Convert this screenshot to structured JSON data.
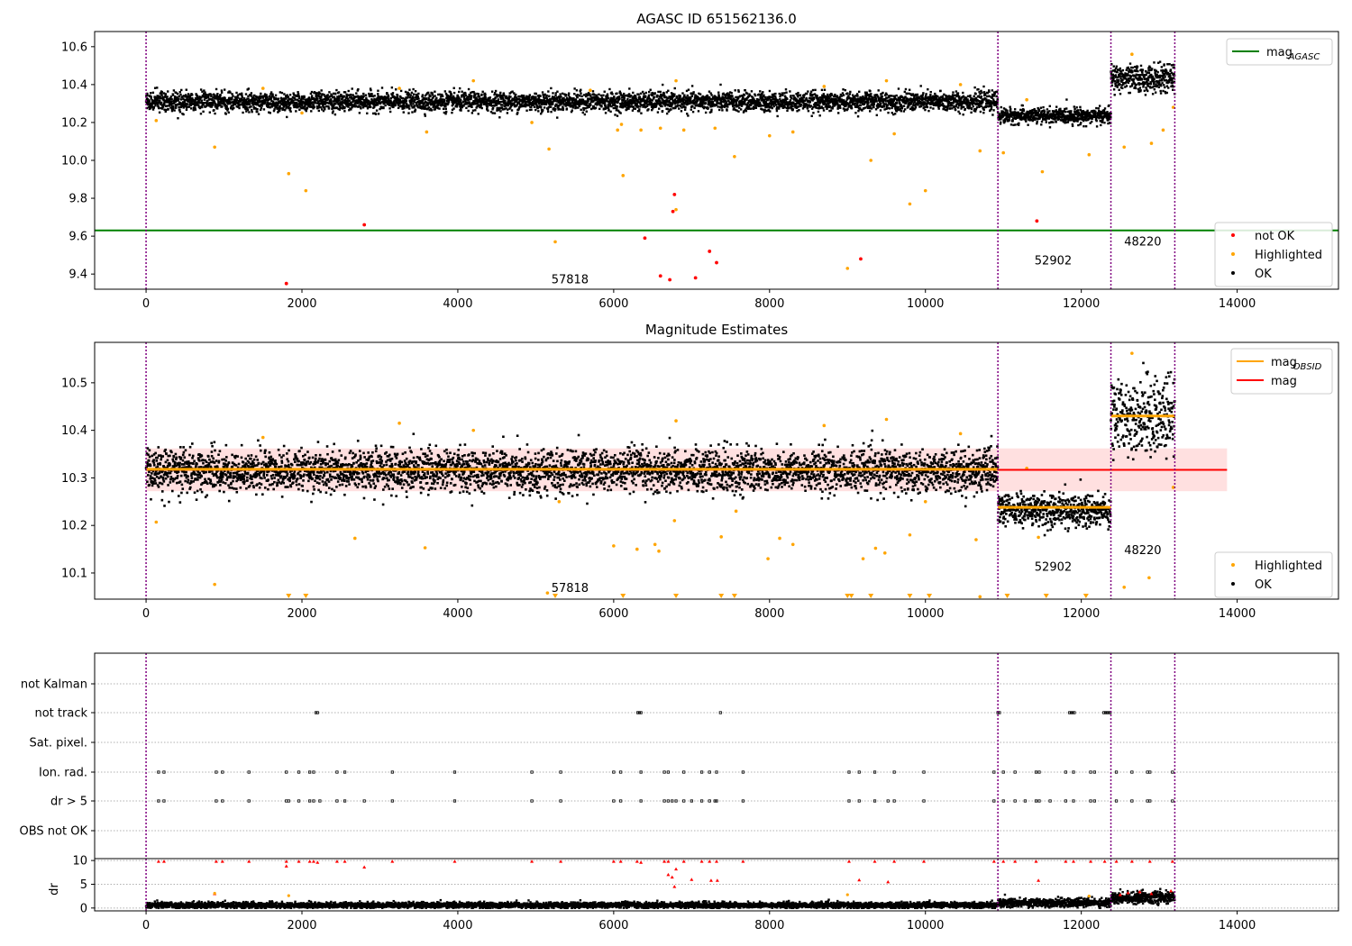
{
  "chart_data": [
    {
      "type": "scatter",
      "title": "AGASC ID 651562136.0",
      "xlabel": "",
      "ylabel": "",
      "xlim": [
        -660,
        15300
      ],
      "ylim": [
        9.32,
        10.68
      ],
      "xticks": [
        0,
        2000,
        4000,
        6000,
        8000,
        10000,
        12000,
        14000
      ],
      "yticks": [
        9.4,
        9.6,
        9.8,
        10.0,
        10.2,
        10.4,
        10.6
      ],
      "ytick_decimals": 1,
      "vlines": [
        0,
        10930,
        12380,
        13200
      ],
      "hline": {
        "name": "mag$_{AGASC}$",
        "y": 9.63,
        "color": "#008000"
      },
      "legends": [
        {
          "position": "top-right",
          "entries": [
            {
              "label": "mag",
              "sub": "AGASC",
              "marker": "line",
              "color": "#008000"
            }
          ]
        },
        {
          "position": "bottom-right",
          "entries": [
            {
              "label": "not OK",
              "marker": "dot",
              "color": "#ff0000"
            },
            {
              "label": "Highlighted",
              "marker": "dot",
              "color": "#ffa500"
            },
            {
              "label": "OK",
              "marker": "dot",
              "color": "#000000"
            }
          ]
        }
      ],
      "annotations": [
        {
          "text": "57818",
          "x": 5200,
          "y": 9.35
        },
        {
          "text": "52902",
          "x": 11400,
          "y": 9.45
        },
        {
          "text": "48220",
          "x": 12550,
          "y": 9.55
        }
      ],
      "segments": [
        {
          "x_start": 0,
          "x_end": 10930,
          "mean": 10.31,
          "spread": 0.025
        },
        {
          "x_start": 10930,
          "x_end": 12380,
          "mean": 10.235,
          "spread": 0.02
        },
        {
          "x_start": 12380,
          "x_end": 13200,
          "mean": 10.43,
          "spread": 0.035
        }
      ],
      "highlighted_points": [
        {
          "x": 880,
          "y": 10.07
        },
        {
          "x": 1830,
          "y": 9.93
        },
        {
          "x": 2050,
          "y": 9.84
        },
        {
          "x": 5250,
          "y": 9.57
        },
        {
          "x": 5170,
          "y": 10.06
        },
        {
          "x": 6100,
          "y": 10.19
        },
        {
          "x": 6120,
          "y": 9.92
        },
        {
          "x": 6600,
          "y": 10.17
        },
        {
          "x": 6800,
          "y": 9.74
        },
        {
          "x": 7550,
          "y": 10.02
        },
        {
          "x": 8000,
          "y": 10.13
        },
        {
          "x": 9000,
          "y": 9.43
        },
        {
          "x": 9800,
          "y": 9.77
        },
        {
          "x": 10000,
          "y": 9.84
        },
        {
          "x": 10700,
          "y": 10.05
        },
        {
          "x": 11000,
          "y": 10.04
        },
        {
          "x": 11500,
          "y": 9.94
        },
        {
          "x": 12100,
          "y": 10.03
        },
        {
          "x": 12550,
          "y": 10.07
        },
        {
          "x": 12900,
          "y": 10.09
        },
        {
          "x": 13050,
          "y": 10.16
        },
        {
          "x": 130,
          "y": 10.21
        },
        {
          "x": 3600,
          "y": 10.15
        },
        {
          "x": 9300,
          "y": 10.0
        },
        {
          "x": 9600,
          "y": 10.14
        },
        {
          "x": 8300,
          "y": 10.15
        },
        {
          "x": 6900,
          "y": 10.16
        },
        {
          "x": 6050,
          "y": 10.16
        },
        {
          "x": 6350,
          "y": 10.16
        },
        {
          "x": 7300,
          "y": 10.17
        },
        {
          "x": 4950,
          "y": 10.2
        },
        {
          "x": 2000,
          "y": 10.25
        },
        {
          "x": 1500,
          "y": 10.38
        },
        {
          "x": 3250,
          "y": 10.38
        },
        {
          "x": 4200,
          "y": 10.42
        },
        {
          "x": 5700,
          "y": 10.37
        },
        {
          "x": 6800,
          "y": 10.42
        },
        {
          "x": 8700,
          "y": 10.39
        },
        {
          "x": 9500,
          "y": 10.42
        },
        {
          "x": 10450,
          "y": 10.4
        },
        {
          "x": 12650,
          "y": 10.56
        },
        {
          "x": 11300,
          "y": 10.32
        },
        {
          "x": 13180,
          "y": 10.28
        }
      ],
      "notok_points": [
        {
          "x": 1800,
          "y": 9.35
        },
        {
          "x": 2800,
          "y": 9.66
        },
        {
          "x": 6400,
          "y": 9.59
        },
        {
          "x": 6600,
          "y": 9.39
        },
        {
          "x": 6720,
          "y": 9.37
        },
        {
          "x": 6780,
          "y": 9.82
        },
        {
          "x": 6760,
          "y": 9.73
        },
        {
          "x": 7050,
          "y": 9.38
        },
        {
          "x": 7230,
          "y": 9.52
        },
        {
          "x": 7320,
          "y": 9.46
        },
        {
          "x": 9170,
          "y": 9.48
        },
        {
          "x": 11430,
          "y": 9.68
        }
      ]
    },
    {
      "type": "scatter",
      "title": "Magnitude Estimates",
      "xlabel": "",
      "ylabel": "",
      "xlim": [
        -660,
        15300
      ],
      "ylim": [
        10.045,
        10.585
      ],
      "xticks": [
        0,
        2000,
        4000,
        6000,
        8000,
        10000,
        12000,
        14000
      ],
      "yticks": [
        10.1,
        10.2,
        10.3,
        10.4,
        10.5
      ],
      "ytick_decimals": 1,
      "vlines": [
        0,
        10930,
        12380,
        13200
      ],
      "mag": {
        "y": 10.317,
        "band": [
          10.272,
          10.362
        ],
        "x_end": 13870,
        "color": "#ff0000"
      },
      "mag_obsid": [
        {
          "x_start": 0,
          "x_end": 10930,
          "y": 10.318
        },
        {
          "x_start": 10930,
          "x_end": 12380,
          "y": 10.238
        },
        {
          "x_start": 12380,
          "x_end": 13200,
          "y": 10.43
        }
      ],
      "legends": [
        {
          "position": "top-right",
          "entries": [
            {
              "label": "mag",
              "sub": "OBSID",
              "marker": "line",
              "color": "#ffa500"
            },
            {
              "label": "mag",
              "marker": "line",
              "color": "#ff0000"
            }
          ]
        },
        {
          "position": "bottom-right",
          "entries": [
            {
              "label": "Highlighted",
              "marker": "dot",
              "color": "#ffa500"
            },
            {
              "label": "OK",
              "marker": "dot",
              "color": "#000000"
            }
          ]
        }
      ],
      "annotations": [
        {
          "text": "57818",
          "x": 5200,
          "y": 10.06
        },
        {
          "text": "52902",
          "x": 11400,
          "y": 10.105
        },
        {
          "text": "48220",
          "x": 12550,
          "y": 10.14
        }
      ],
      "segments": [
        {
          "x_start": 0,
          "x_end": 10930,
          "mean": 10.315,
          "spread": 0.022
        },
        {
          "x_start": 10930,
          "x_end": 12380,
          "mean": 10.232,
          "spread": 0.017
        },
        {
          "x_start": 12380,
          "x_end": 13200,
          "mean": 10.43,
          "spread": 0.04
        }
      ],
      "highlighted_points": [
        {
          "x": 880,
          "y": 10.076
        },
        {
          "x": 2680,
          "y": 10.173
        },
        {
          "x": 3580,
          "y": 10.153
        },
        {
          "x": 6000,
          "y": 10.157
        },
        {
          "x": 6300,
          "y": 10.15
        },
        {
          "x": 6530,
          "y": 10.16
        },
        {
          "x": 6580,
          "y": 10.146
        },
        {
          "x": 6780,
          "y": 10.21
        },
        {
          "x": 7380,
          "y": 10.176
        },
        {
          "x": 7570,
          "y": 10.23
        },
        {
          "x": 7980,
          "y": 10.13
        },
        {
          "x": 8130,
          "y": 10.173
        },
        {
          "x": 8300,
          "y": 10.16
        },
        {
          "x": 9200,
          "y": 10.13
        },
        {
          "x": 9360,
          "y": 10.152
        },
        {
          "x": 9480,
          "y": 10.142
        },
        {
          "x": 10650,
          "y": 10.17
        },
        {
          "x": 11450,
          "y": 10.175
        },
        {
          "x": 12550,
          "y": 10.07
        },
        {
          "x": 12870,
          "y": 10.09
        },
        {
          "x": 130,
          "y": 10.207
        },
        {
          "x": 5150,
          "y": 10.058
        },
        {
          "x": 10700,
          "y": 10.05
        },
        {
          "x": 12650,
          "y": 10.562
        },
        {
          "x": 13180,
          "y": 10.28
        },
        {
          "x": 3250,
          "y": 10.415
        },
        {
          "x": 6800,
          "y": 10.42
        },
        {
          "x": 9500,
          "y": 10.423
        },
        {
          "x": 1500,
          "y": 10.385
        },
        {
          "x": 4200,
          "y": 10.4
        },
        {
          "x": 8700,
          "y": 10.41
        },
        {
          "x": 10450,
          "y": 10.393
        },
        {
          "x": 11300,
          "y": 10.32
        },
        {
          "x": 9800,
          "y": 10.18
        },
        {
          "x": 10000,
          "y": 10.25
        },
        {
          "x": 5300,
          "y": 10.25
        }
      ],
      "offscale_x": [
        1830,
        2050,
        5250,
        6120,
        6800,
        7380,
        7550,
        9000,
        9050,
        9300,
        9800,
        10050,
        11050,
        11550,
        12060
      ]
    },
    {
      "type": "scatter",
      "title": "",
      "xlabel": "",
      "ylabel": "",
      "xlim": [
        -660,
        15300
      ],
      "categories": [
        "not Kalman",
        "not track",
        "Sat. pixel.",
        "Ion. rad.",
        "dr > 5",
        "OBS not OK"
      ],
      "vlines": [
        0,
        10930,
        12380,
        13200
      ],
      "flags": {
        "not track": [
          2180,
          2200,
          6310,
          6330,
          6350,
          7370,
          10930,
          10950,
          11850,
          11870,
          11890,
          11910,
          12290,
          12310,
          12330,
          12350,
          12370
        ],
        "Ion. rad.": [
          160,
          230,
          900,
          980,
          1320,
          1800,
          1960,
          2100,
          2150,
          2450,
          2550,
          3160,
          3960,
          4950,
          5320,
          6000,
          6090,
          6350,
          6650,
          6700,
          6900,
          7130,
          7230,
          7320,
          7660,
          9020,
          9150,
          9350,
          9600,
          9980,
          10880,
          11000,
          11150,
          11420,
          11460,
          11800,
          11900,
          12120,
          12170,
          12450,
          12650,
          12850,
          12880,
          13170
        ],
        "dr > 5": [
          160,
          230,
          900,
          980,
          1320,
          1800,
          1830,
          1960,
          2100,
          2150,
          2230,
          2450,
          2550,
          2800,
          3160,
          3960,
          4950,
          5320,
          6000,
          6090,
          6350,
          6650,
          6700,
          6750,
          6800,
          6900,
          7000,
          7130,
          7230,
          7300,
          7320,
          7660,
          9020,
          9150,
          9350,
          9520,
          9600,
          9980,
          10880,
          11000,
          11150,
          11280,
          11420,
          11460,
          11600,
          11800,
          11900,
          12120,
          12170,
          12450,
          12650,
          12850,
          12880,
          13170
        ]
      }
    },
    {
      "type": "scatter",
      "title": "",
      "xlabel": "",
      "ylabel": "dr",
      "xlim": [
        -660,
        15300
      ],
      "ylim": [
        -0.6,
        10.4
      ],
      "yticks": [
        0,
        5,
        10
      ],
      "ytick_decimals": 0,
      "xticks": [
        0,
        2000,
        4000,
        6000,
        8000,
        10000,
        12000,
        14000
      ],
      "vlines": [
        0,
        10930,
        12380,
        13200
      ],
      "segments": [
        {
          "x_start": 0,
          "x_end": 10930,
          "mean": 0.6,
          "spread": 0.3
        },
        {
          "x_start": 10930,
          "x_end": 12380,
          "mean": 1.1,
          "spread": 0.45
        },
        {
          "x_start": 12380,
          "x_end": 13200,
          "mean": 2.2,
          "spread": 0.6
        }
      ],
      "notok_points": [
        {
          "x": 160,
          "y": 9.8
        },
        {
          "x": 230,
          "y": 9.8
        },
        {
          "x": 900,
          "y": 9.8
        },
        {
          "x": 980,
          "y": 9.8
        },
        {
          "x": 1320,
          "y": 9.8
        },
        {
          "x": 1800,
          "y": 9.8
        },
        {
          "x": 1960,
          "y": 9.8
        },
        {
          "x": 2100,
          "y": 9.8
        },
        {
          "x": 2150,
          "y": 9.8
        },
        {
          "x": 2200,
          "y": 9.6
        },
        {
          "x": 2450,
          "y": 9.8
        },
        {
          "x": 2550,
          "y": 9.8
        },
        {
          "x": 3160,
          "y": 9.8
        },
        {
          "x": 3960,
          "y": 9.8
        },
        {
          "x": 4950,
          "y": 9.8
        },
        {
          "x": 5320,
          "y": 9.8
        },
        {
          "x": 6000,
          "y": 9.8
        },
        {
          "x": 6090,
          "y": 9.8
        },
        {
          "x": 6300,
          "y": 9.8
        },
        {
          "x": 6350,
          "y": 9.6
        },
        {
          "x": 6650,
          "y": 9.8
        },
        {
          "x": 6700,
          "y": 9.8
        },
        {
          "x": 6900,
          "y": 9.8
        },
        {
          "x": 7130,
          "y": 9.8
        },
        {
          "x": 7230,
          "y": 9.8
        },
        {
          "x": 7320,
          "y": 9.8
        },
        {
          "x": 7660,
          "y": 9.8
        },
        {
          "x": 9020,
          "y": 9.8
        },
        {
          "x": 9350,
          "y": 9.8
        },
        {
          "x": 9600,
          "y": 9.8
        },
        {
          "x": 9980,
          "y": 9.8
        },
        {
          "x": 10880,
          "y": 9.8
        },
        {
          "x": 11000,
          "y": 9.8
        },
        {
          "x": 11150,
          "y": 9.8
        },
        {
          "x": 11420,
          "y": 9.8
        },
        {
          "x": 11800,
          "y": 9.8
        },
        {
          "x": 11900,
          "y": 9.8
        },
        {
          "x": 12120,
          "y": 9.8
        },
        {
          "x": 12300,
          "y": 9.8
        },
        {
          "x": 12450,
          "y": 9.8
        },
        {
          "x": 12650,
          "y": 9.8
        },
        {
          "x": 12880,
          "y": 9.8
        },
        {
          "x": 13170,
          "y": 9.8
        },
        {
          "x": 1800,
          "y": 8.8
        },
        {
          "x": 2800,
          "y": 8.6
        },
        {
          "x": 6700,
          "y": 7.0
        },
        {
          "x": 6800,
          "y": 8.2
        },
        {
          "x": 6750,
          "y": 6.5
        },
        {
          "x": 7000,
          "y": 6.0
        },
        {
          "x": 7250,
          "y": 5.8
        },
        {
          "x": 7330,
          "y": 5.8
        },
        {
          "x": 9150,
          "y": 5.9
        },
        {
          "x": 9520,
          "y": 5.5
        },
        {
          "x": 11450,
          "y": 5.8
        },
        {
          "x": 6780,
          "y": 4.5
        },
        {
          "x": 880,
          "y": 3.0
        },
        {
          "x": 12500,
          "y": 2.8
        },
        {
          "x": 12600,
          "y": 3.2
        },
        {
          "x": 12750,
          "y": 3.4
        },
        {
          "x": 12900,
          "y": 3.0
        },
        {
          "x": 13150,
          "y": 3.6
        }
      ],
      "highlighted_points": [
        {
          "x": 880,
          "y": 3.1
        },
        {
          "x": 1830,
          "y": 2.6
        },
        {
          "x": 9000,
          "y": 2.8
        },
        {
          "x": 12100,
          "y": 2.5
        }
      ]
    }
  ]
}
